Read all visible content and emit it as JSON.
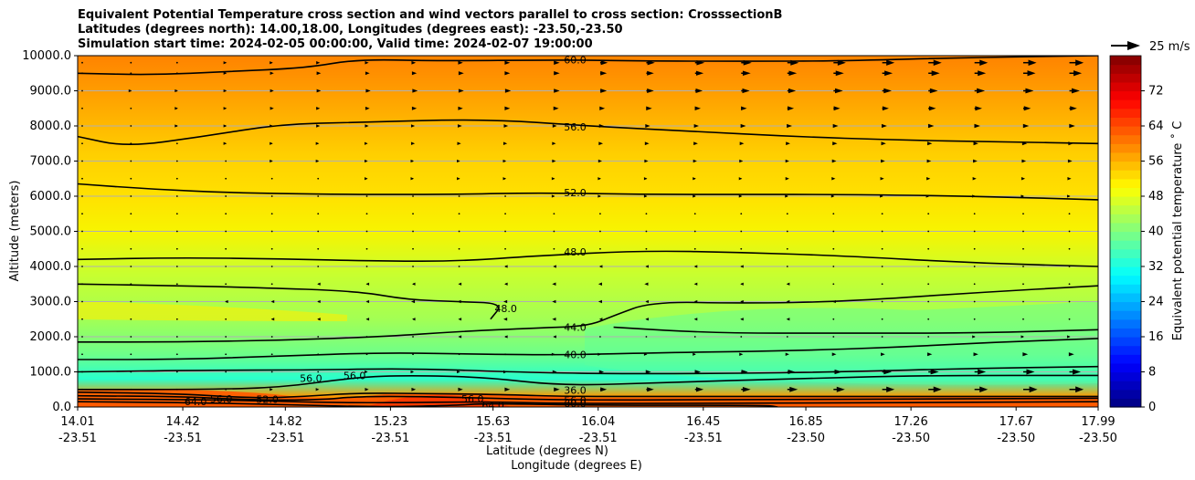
{
  "header": {
    "title_line1": "Equivalent Potential Temperature cross section and wind vectors parallel to cross section: CrosssectionB",
    "title_line2": "Latitudes (degrees north): 14.00,18.00, Longitudes (degrees east): -23.50,-23.50",
    "title_line3": "Simulation start time: 2024-02-05 00:00:00, Valid time: 2024-02-07 19:00:00"
  },
  "chart_data": {
    "type": "heatmap",
    "xlabel_lat": "Latitude (degrees N)",
    "xlabel_lon": "Longitude (degrees E)",
    "ylabel": "Altitude (meters)",
    "x_ticks": [
      {
        "lat": "14.01",
        "lon": "-23.51",
        "value": 14.01
      },
      {
        "lat": "14.42",
        "lon": "-23.51",
        "value": 14.42
      },
      {
        "lat": "14.82",
        "lon": "-23.51",
        "value": 14.82
      },
      {
        "lat": "15.23",
        "lon": "-23.51",
        "value": 15.23
      },
      {
        "lat": "15.63",
        "lon": "-23.51",
        "value": 15.63
      },
      {
        "lat": "16.04",
        "lon": "-23.51",
        "value": 16.04
      },
      {
        "lat": "16.45",
        "lon": "-23.51",
        "value": 16.45
      },
      {
        "lat": "16.85",
        "lon": "-23.50",
        "value": 16.85
      },
      {
        "lat": "17.26",
        "lon": "-23.50",
        "value": 17.26
      },
      {
        "lat": "17.67",
        "lon": "-23.50",
        "value": 17.67
      },
      {
        "lat": "17.99",
        "lon": "-23.50",
        "value": 17.99
      }
    ],
    "xlim": [
      14.01,
      17.99
    ],
    "y_ticks": [
      "0.0",
      "1000.0",
      "2000.0",
      "3000.0",
      "4000.0",
      "5000.0",
      "6000.0",
      "7000.0",
      "8000.0",
      "9000.0",
      "10000.0"
    ],
    "ylim": [
      0,
      10000
    ],
    "grid": "horizontal",
    "colorbar": {
      "label": "Equivalent potential temperature ˚ C",
      "range": [
        0,
        80
      ],
      "ticks": [
        "0",
        "8",
        "16",
        "24",
        "32",
        "40",
        "48",
        "56",
        "64",
        "72"
      ],
      "colormap": "jet"
    },
    "wind_key": {
      "label": "25 m/s"
    },
    "contour_labels": [
      {
        "text": "60.0",
        "lat": 15.95,
        "alt": 9880
      },
      {
        "text": "56.0",
        "lat": 15.95,
        "alt": 7970
      },
      {
        "text": "52.0",
        "lat": 15.95,
        "alt": 6100
      },
      {
        "text": "48.0",
        "lat": 15.95,
        "alt": 4420
      },
      {
        "text": "44.0",
        "lat": 15.95,
        "alt": 2270
      },
      {
        "text": "40.0",
        "lat": 15.95,
        "alt": 1490
      },
      {
        "text": "36.0",
        "lat": 15.95,
        "alt": 480
      },
      {
        "text": "48.0",
        "lat": 15.68,
        "alt": 2800
      },
      {
        "text": "52.0",
        "lat": 14.75,
        "alt": 220
      },
      {
        "text": "56.0",
        "lat": 15.55,
        "alt": 230
      },
      {
        "text": "64.0",
        "lat": 15.63,
        "alt": 50
      },
      {
        "text": "56.0",
        "lat": 15.09,
        "alt": 900
      },
      {
        "text": "56.0",
        "lat": 14.92,
        "alt": 820
      },
      {
        "text": "56.0",
        "lat": 14.57,
        "alt": 230
      },
      {
        "text": "64.0",
        "lat": 14.47,
        "alt": 150
      },
      {
        "text": "56.0",
        "lat": 15.95,
        "alt": 200
      },
      {
        "text": "60.0",
        "lat": 15.95,
        "alt": 100
      }
    ],
    "contours": [
      {
        "value": 60,
        "points": [
          [
            14.01,
            9500
          ],
          [
            14.3,
            9450
          ],
          [
            14.6,
            9550
          ],
          [
            14.9,
            9650
          ],
          [
            15.1,
            9900
          ],
          [
            15.4,
            9850
          ],
          [
            15.9,
            9880
          ],
          [
            16.2,
            9850
          ],
          [
            16.6,
            9840
          ],
          [
            17.0,
            9850
          ],
          [
            17.5,
            9950
          ],
          [
            17.99,
            10000
          ]
        ]
      },
      {
        "value": 56,
        "points": [
          [
            14.01,
            7700
          ],
          [
            14.2,
            7400
          ],
          [
            14.5,
            7700
          ],
          [
            14.8,
            8050
          ],
          [
            15.1,
            8100
          ],
          [
            15.6,
            8200
          ],
          [
            16.0,
            8000
          ],
          [
            16.4,
            7850
          ],
          [
            16.8,
            7700
          ],
          [
            17.2,
            7600
          ],
          [
            17.6,
            7550
          ],
          [
            17.99,
            7500
          ]
        ]
      },
      {
        "value": 52,
        "points": [
          [
            14.01,
            6350
          ],
          [
            14.3,
            6200
          ],
          [
            14.6,
            6100
          ],
          [
            15.0,
            6050
          ],
          [
            15.5,
            6050
          ],
          [
            15.8,
            6100
          ],
          [
            16.2,
            6050
          ],
          [
            16.6,
            6050
          ],
          [
            17.0,
            6050
          ],
          [
            17.5,
            6000
          ],
          [
            17.99,
            5900
          ]
        ]
      },
      {
        "value": 48,
        "points": [
          [
            14.01,
            4200
          ],
          [
            14.4,
            4250
          ],
          [
            14.8,
            4220
          ],
          [
            15.2,
            4150
          ],
          [
            15.5,
            4150
          ],
          [
            15.8,
            4300
          ],
          [
            16.2,
            4450
          ],
          [
            16.6,
            4400
          ],
          [
            17.0,
            4300
          ],
          [
            17.5,
            4100
          ],
          [
            17.99,
            4000
          ]
        ]
      },
      {
        "value": 48,
        "points": [
          [
            14.01,
            3500
          ],
          [
            14.4,
            3450
          ],
          [
            14.7,
            3400
          ],
          [
            15.1,
            3300
          ],
          [
            15.3,
            3050
          ],
          [
            15.5,
            3000
          ],
          [
            15.67,
            2950
          ],
          [
            15.62,
            2500
          ]
        ]
      },
      {
        "value": 44,
        "points": [
          [
            14.01,
            1850
          ],
          [
            14.4,
            1850
          ],
          [
            14.8,
            1900
          ],
          [
            15.2,
            2000
          ],
          [
            15.5,
            2150
          ],
          [
            15.8,
            2250
          ],
          [
            16.0,
            2300
          ],
          [
            16.1,
            2600
          ],
          [
            16.25,
            3000
          ],
          [
            16.6,
            2950
          ],
          [
            17.0,
            3000
          ],
          [
            17.5,
            3250
          ],
          [
            17.99,
            3450
          ]
        ]
      },
      {
        "value": 44,
        "points": [
          [
            16.1,
            2270
          ],
          [
            16.5,
            2100
          ],
          [
            17.0,
            2100
          ],
          [
            17.5,
            2100
          ],
          [
            17.99,
            2200
          ]
        ]
      },
      {
        "value": 40,
        "points": [
          [
            14.01,
            1350
          ],
          [
            14.4,
            1350
          ],
          [
            14.8,
            1450
          ],
          [
            15.2,
            1550
          ],
          [
            15.6,
            1500
          ],
          [
            15.9,
            1480
          ],
          [
            16.3,
            1550
          ],
          [
            16.8,
            1600
          ],
          [
            17.2,
            1700
          ],
          [
            17.6,
            1850
          ],
          [
            17.99,
            1950
          ]
        ]
      },
      {
        "value": 36,
        "points": [
          [
            14.01,
            1000
          ],
          [
            14.5,
            1050
          ],
          [
            14.9,
            1050
          ],
          [
            15.3,
            1100
          ],
          [
            15.7,
            1000
          ],
          [
            16.0,
            950
          ],
          [
            16.5,
            950
          ],
          [
            17.0,
            1000
          ],
          [
            17.5,
            1100
          ],
          [
            17.99,
            1150
          ]
        ]
      },
      {
        "value": 32,
        "points": [
          [
            14.01,
            500
          ],
          [
            14.5,
            500
          ],
          [
            14.8,
            550
          ],
          [
            15.1,
            850
          ],
          [
            15.3,
            900
          ],
          [
            15.6,
            850
          ],
          [
            15.9,
            600
          ],
          [
            16.3,
            700
          ],
          [
            16.8,
            800
          ],
          [
            17.3,
            900
          ],
          [
            17.99,
            900
          ]
        ]
      },
      {
        "value": 52,
        "points": [
          [
            14.01,
            420
          ],
          [
            14.4,
            380
          ],
          [
            14.7,
            250
          ],
          [
            14.9,
            300
          ],
          [
            15.1,
            400
          ],
          [
            15.4,
            380
          ],
          [
            15.7,
            350
          ],
          [
            15.9,
            300
          ],
          [
            16.3,
            300
          ],
          [
            16.8,
            300
          ],
          [
            17.99,
            300
          ]
        ]
      },
      {
        "value": 56,
        "points": [
          [
            14.01,
            320
          ],
          [
            14.4,
            300
          ],
          [
            14.7,
            200
          ],
          [
            14.95,
            200
          ],
          [
            15.1,
            300
          ],
          [
            15.35,
            300
          ],
          [
            15.6,
            250
          ],
          [
            15.9,
            200
          ],
          [
            16.5,
            200
          ],
          [
            17.99,
            250
          ]
        ]
      },
      {
        "value": 60,
        "points": [
          [
            14.01,
            230
          ],
          [
            14.6,
            200
          ],
          [
            14.95,
            130
          ],
          [
            15.2,
            120
          ],
          [
            15.6,
            150
          ],
          [
            15.9,
            100
          ],
          [
            16.5,
            100
          ],
          [
            17.99,
            150
          ]
        ]
      },
      {
        "value": 64,
        "points": [
          [
            14.01,
            150
          ],
          [
            14.5,
            120
          ],
          [
            14.9,
            50
          ],
          [
            15.2,
            0
          ],
          [
            15.5,
            50
          ],
          [
            15.6,
            100
          ],
          [
            16.0,
            50
          ],
          [
            16.7,
            50
          ],
          [
            16.74,
            0
          ]
        ]
      }
    ],
    "wind_rows_alt": [
      9800,
      9500,
      9000,
      8500,
      8000,
      7500,
      7000,
      6500,
      6000,
      5500,
      5000,
      4500,
      4000,
      3500,
      3000,
      2500,
      2000,
      1500,
      1000,
      500
    ],
    "wind_cols_lat": [
      14.01,
      14.2,
      14.38,
      14.57,
      14.75,
      14.93,
      15.12,
      15.3,
      15.48,
      15.66,
      15.85,
      16.03,
      16.21,
      16.4,
      16.58,
      16.76,
      16.94,
      17.13,
      17.31,
      17.49,
      17.68,
      17.86
    ],
    "wind_u": [
      [
        0,
        0,
        0,
        1,
        1,
        2,
        2,
        3,
        4,
        5,
        6,
        8,
        9,
        10,
        11,
        12,
        13,
        13,
        14,
        14,
        14,
        15
      ],
      [
        0,
        0,
        0,
        1,
        2,
        3,
        3,
        4,
        5,
        5,
        6,
        7,
        8,
        9,
        10,
        10,
        11,
        11,
        12,
        12,
        13,
        13
      ],
      [
        0,
        1,
        1,
        1,
        2,
        3,
        4,
        5,
        5,
        6,
        6,
        7,
        8,
        8,
        9,
        9,
        10,
        10,
        10,
        11,
        11,
        11
      ],
      [
        0,
        0,
        1,
        1,
        2,
        2,
        3,
        4,
        4,
        5,
        5,
        5,
        6,
        6,
        6,
        7,
        7,
        7,
        8,
        8,
        8,
        8
      ],
      [
        0,
        0,
        1,
        1,
        1,
        2,
        2,
        2,
        3,
        3,
        3,
        4,
        4,
        4,
        5,
        5,
        5,
        5,
        6,
        6,
        6,
        6
      ],
      [
        0,
        0,
        0,
        1,
        1,
        1,
        1,
        2,
        2,
        2,
        2,
        3,
        3,
        3,
        3,
        3,
        4,
        4,
        4,
        4,
        4,
        4
      ],
      [
        0,
        0,
        0,
        0,
        1,
        1,
        1,
        1,
        1,
        1,
        2,
        2,
        2,
        2,
        2,
        2,
        3,
        3,
        3,
        3,
        3,
        3
      ],
      [
        0,
        0,
        0,
        0,
        0,
        0,
        1,
        1,
        1,
        1,
        1,
        1,
        1,
        1,
        1,
        2,
        2,
        2,
        2,
        2,
        2,
        2
      ],
      [
        0,
        0,
        0,
        0,
        0,
        0,
        0,
        0,
        0,
        0,
        1,
        1,
        1,
        1,
        1,
        1,
        1,
        1,
        1,
        1,
        1,
        1
      ],
      [
        0,
        0,
        0,
        0,
        0,
        0,
        0,
        0,
        0,
        0,
        0,
        0,
        0,
        0,
        0,
        0,
        0,
        0,
        0,
        0,
        0,
        0
      ],
      [
        0,
        0,
        0,
        0,
        0,
        0,
        0,
        0,
        0,
        0,
        0,
        0,
        0,
        0,
        0,
        0,
        0,
        0,
        0,
        0,
        0,
        0
      ],
      [
        0,
        0,
        0,
        0,
        0,
        0,
        0,
        0,
        0,
        0,
        0,
        0,
        0,
        0,
        0,
        0,
        0,
        0,
        0,
        0,
        0,
        0
      ],
      [
        0,
        0,
        0,
        0,
        0,
        0,
        0,
        0,
        0,
        -1,
        -1,
        -1,
        -1,
        -1,
        -1,
        0,
        0,
        0,
        0,
        0,
        0,
        0
      ],
      [
        0,
        0,
        0,
        0,
        0,
        -1,
        -1,
        -1,
        -1,
        -1,
        -2,
        -2,
        -2,
        -1,
        -1,
        -1,
        0,
        0,
        0,
        0,
        0,
        0
      ],
      [
        0,
        0,
        0,
        -1,
        -1,
        -1,
        -1,
        -2,
        -2,
        -2,
        -2,
        -2,
        -1,
        -1,
        -1,
        -1,
        -1,
        0,
        0,
        0,
        0,
        0
      ],
      [
        0,
        0,
        0,
        0,
        -1,
        -1,
        -1,
        -1,
        -1,
        -2,
        -2,
        -1,
        -1,
        -1,
        -1,
        -1,
        0,
        0,
        0,
        0,
        0,
        0
      ],
      [
        0,
        0,
        0,
        0,
        0,
        0,
        0,
        0,
        -1,
        -1,
        -1,
        0,
        0,
        0,
        0,
        0,
        0,
        0,
        0,
        1,
        1,
        1
      ],
      [
        0,
        0,
        0,
        0,
        0,
        0,
        0,
        0,
        0,
        0,
        1,
        1,
        1,
        1,
        2,
        2,
        3,
        3,
        4,
        4,
        5,
        5
      ],
      [
        0,
        0,
        0,
        0,
        0,
        0,
        1,
        1,
        1,
        2,
        3,
        4,
        5,
        6,
        7,
        8,
        9,
        10,
        11,
        12,
        12,
        12
      ],
      [
        0,
        0,
        0,
        0,
        1,
        1,
        2,
        3,
        4,
        5,
        6,
        7,
        8,
        9,
        10,
        11,
        12,
        13,
        14,
        14,
        15,
        15
      ]
    ]
  }
}
